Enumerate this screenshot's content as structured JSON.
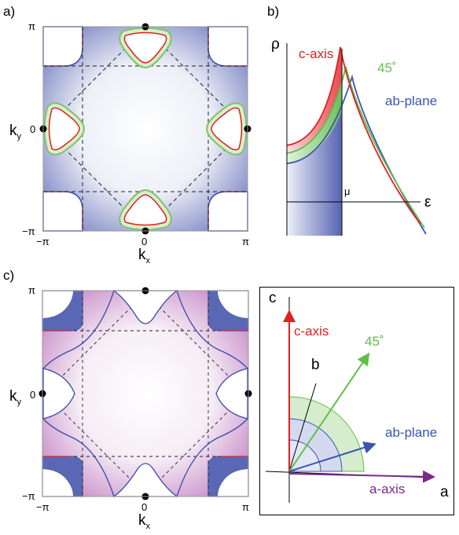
{
  "panels": [
    {
      "label": "a)",
      "y_ticks": [
        "π",
        "0",
        "−π"
      ],
      "x_ticks": [
        "−π",
        "0",
        "π"
      ],
      "y_axis": "k",
      "y_sub": "y",
      "x_axis": "k",
      "x_sub": "x"
    },
    {
      "label": "b)",
      "y_axis": "ρ",
      "x_axis": "ε",
      "mu": "μ",
      "curves": [
        "c-axis",
        "45˚",
        "ab-plane"
      ]
    },
    {
      "label": "c)",
      "y_ticks": [
        "π",
        "0",
        "−π"
      ],
      "x_ticks": [
        "−π",
        "0",
        "π"
      ],
      "y_axis": "k",
      "y_sub": "y",
      "x_axis": "k",
      "x_sub": "x"
    },
    {
      "axes": [
        "c",
        "b",
        "a"
      ],
      "arrows": [
        "c-axis",
        "45˚",
        "ab-plane",
        "a-axis"
      ]
    }
  ]
}
